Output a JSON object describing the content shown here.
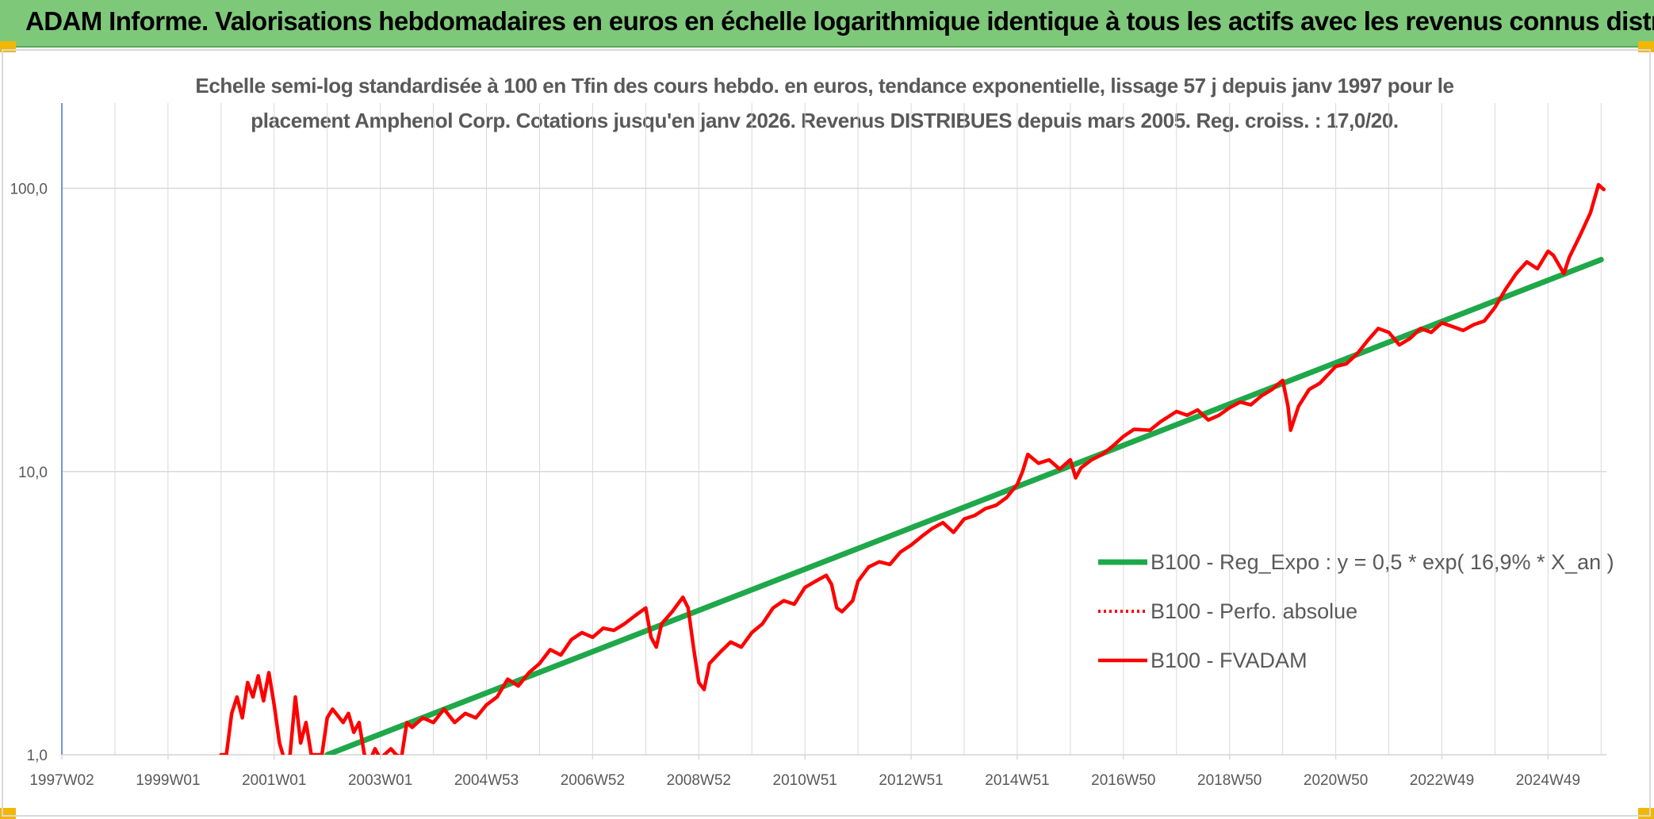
{
  "banner": {
    "title": "ADAM Informe. Valorisations hebdomadaires en euros en échelle logarithmique identique à tous les actifs avec les revenus connus distribués"
  },
  "colors": {
    "banner_bg": "#7ec87a",
    "corner": "#f2b705",
    "trend": "#1fa84a",
    "fvadam": "#ff0000",
    "perfo": "#ff0000",
    "grid": "#d9d9d9",
    "axis": "#4472c4"
  },
  "chart_data": {
    "type": "line",
    "title_line1": "Echelle semi-log standardisée à 100 en Tfin des cours hebdo. en euros, tendance exponentielle, lissage 57 j depuis janv 1997 pour le",
    "title_line2": "placement Amphenol Corp. Cotations jusqu'en janv 2026. Revenus DISTRIBUES depuis mars 2005. Reg. croiss. : 17,0/20.",
    "y_scale": "log",
    "ylim": [
      1,
      200
    ],
    "y_ticks": [
      {
        "value": 1,
        "label": "1,0"
      },
      {
        "value": 10,
        "label": "10,0"
      },
      {
        "value": 100,
        "label": "100,0"
      }
    ],
    "xlim": [
      1997.0,
      2026.1
    ],
    "x_ticks": [
      {
        "value": 1997.0,
        "label": "1997W02"
      },
      {
        "value": 1999.0,
        "label": "1999W01"
      },
      {
        "value": 2001.0,
        "label": "2001W01"
      },
      {
        "value": 2003.0,
        "label": "2003W01"
      },
      {
        "value": 2005.0,
        "label": "2004W53"
      },
      {
        "value": 2007.0,
        "label": "2006W52"
      },
      {
        "value": 2009.0,
        "label": "2008W52"
      },
      {
        "value": 2011.0,
        "label": "2010W51"
      },
      {
        "value": 2013.0,
        "label": "2012W51"
      },
      {
        "value": 2015.0,
        "label": "2014W51"
      },
      {
        "value": 2017.0,
        "label": "2016W50"
      },
      {
        "value": 2019.0,
        "label": "2018W50"
      },
      {
        "value": 2021.0,
        "label": "2020W50"
      },
      {
        "value": 2023.0,
        "label": "2022W49"
      },
      {
        "value": 2025.0,
        "label": "2024W49"
      }
    ],
    "grid": true,
    "legend_position": "right",
    "series": [
      {
        "name": "B100 - Reg_Expo : y = 0,5 * exp( 16,9% *  X_an )",
        "style": "solid-thick",
        "points": [
          [
            2002.0,
            1.0
          ],
          [
            2026.0,
            56.0
          ]
        ]
      },
      {
        "name": "B100 - Perfo. absolue",
        "style": "dotted",
        "points": []
      },
      {
        "name": "B100 - FVADAM",
        "style": "solid",
        "points": [
          [
            2000.0,
            1.0
          ],
          [
            2000.1,
            1.0
          ],
          [
            2000.2,
            1.4
          ],
          [
            2000.3,
            1.6
          ],
          [
            2000.4,
            1.35
          ],
          [
            2000.5,
            1.8
          ],
          [
            2000.6,
            1.6
          ],
          [
            2000.7,
            1.9
          ],
          [
            2000.8,
            1.55
          ],
          [
            2000.9,
            1.95
          ],
          [
            2001.0,
            1.5
          ],
          [
            2001.1,
            1.1
          ],
          [
            2001.2,
            0.95
          ],
          [
            2001.3,
            1.0
          ],
          [
            2001.4,
            1.6
          ],
          [
            2001.5,
            1.1
          ],
          [
            2001.6,
            1.3
          ],
          [
            2001.7,
            1.0
          ],
          [
            2001.8,
            1.0
          ],
          [
            2001.9,
            1.0
          ],
          [
            2002.0,
            1.35
          ],
          [
            2002.1,
            1.45
          ],
          [
            2002.3,
            1.3
          ],
          [
            2002.4,
            1.4
          ],
          [
            2002.5,
            1.2
          ],
          [
            2002.6,
            1.3
          ],
          [
            2002.7,
            1.0
          ],
          [
            2002.8,
            0.95
          ],
          [
            2002.9,
            1.05
          ],
          [
            2003.0,
            0.97
          ],
          [
            2003.2,
            1.05
          ],
          [
            2003.3,
            1.0
          ],
          [
            2003.4,
            0.98
          ],
          [
            2003.5,
            1.3
          ],
          [
            2003.6,
            1.25
          ],
          [
            2003.8,
            1.35
          ],
          [
            2004.0,
            1.3
          ],
          [
            2004.2,
            1.45
          ],
          [
            2004.4,
            1.3
          ],
          [
            2004.6,
            1.4
          ],
          [
            2004.8,
            1.35
          ],
          [
            2005.0,
            1.5
          ],
          [
            2005.2,
            1.6
          ],
          [
            2005.4,
            1.85
          ],
          [
            2005.6,
            1.75
          ],
          [
            2005.8,
            1.95
          ],
          [
            2006.0,
            2.1
          ],
          [
            2006.2,
            2.35
          ],
          [
            2006.4,
            2.25
          ],
          [
            2006.6,
            2.55
          ],
          [
            2006.8,
            2.7
          ],
          [
            2007.0,
            2.6
          ],
          [
            2007.2,
            2.8
          ],
          [
            2007.4,
            2.75
          ],
          [
            2007.6,
            2.9
          ],
          [
            2007.8,
            3.1
          ],
          [
            2008.0,
            3.3
          ],
          [
            2008.1,
            2.6
          ],
          [
            2008.2,
            2.4
          ],
          [
            2008.3,
            2.9
          ],
          [
            2008.5,
            3.2
          ],
          [
            2008.7,
            3.6
          ],
          [
            2008.8,
            3.3
          ],
          [
            2008.9,
            2.4
          ],
          [
            2009.0,
            1.8
          ],
          [
            2009.1,
            1.7
          ],
          [
            2009.2,
            2.1
          ],
          [
            2009.4,
            2.3
          ],
          [
            2009.6,
            2.5
          ],
          [
            2009.8,
            2.4
          ],
          [
            2010.0,
            2.7
          ],
          [
            2010.2,
            2.9
          ],
          [
            2010.4,
            3.3
          ],
          [
            2010.6,
            3.5
          ],
          [
            2010.8,
            3.4
          ],
          [
            2011.0,
            3.9
          ],
          [
            2011.2,
            4.1
          ],
          [
            2011.4,
            4.3
          ],
          [
            2011.5,
            4.0
          ],
          [
            2011.6,
            3.3
          ],
          [
            2011.7,
            3.2
          ],
          [
            2011.9,
            3.5
          ],
          [
            2012.0,
            4.1
          ],
          [
            2012.2,
            4.6
          ],
          [
            2012.4,
            4.8
          ],
          [
            2012.6,
            4.7
          ],
          [
            2012.8,
            5.2
          ],
          [
            2013.0,
            5.5
          ],
          [
            2013.2,
            5.9
          ],
          [
            2013.4,
            6.3
          ],
          [
            2013.6,
            6.6
          ],
          [
            2013.8,
            6.1
          ],
          [
            2014.0,
            6.8
          ],
          [
            2014.2,
            7.0
          ],
          [
            2014.4,
            7.4
          ],
          [
            2014.6,
            7.6
          ],
          [
            2014.8,
            8.1
          ],
          [
            2015.0,
            9.0
          ],
          [
            2015.1,
            10.0
          ],
          [
            2015.2,
            11.5
          ],
          [
            2015.4,
            10.7
          ],
          [
            2015.6,
            11.0
          ],
          [
            2015.8,
            10.2
          ],
          [
            2016.0,
            11.0
          ],
          [
            2016.1,
            9.5
          ],
          [
            2016.2,
            10.3
          ],
          [
            2016.4,
            11.0
          ],
          [
            2016.6,
            11.5
          ],
          [
            2016.8,
            12.3
          ],
          [
            2017.0,
            13.3
          ],
          [
            2017.2,
            14.1
          ],
          [
            2017.5,
            14.0
          ],
          [
            2017.7,
            15.0
          ],
          [
            2018.0,
            16.3
          ],
          [
            2018.2,
            15.8
          ],
          [
            2018.4,
            16.5
          ],
          [
            2018.6,
            15.2
          ],
          [
            2018.8,
            15.8
          ],
          [
            2019.0,
            16.8
          ],
          [
            2019.2,
            17.6
          ],
          [
            2019.4,
            17.2
          ],
          [
            2019.6,
            18.5
          ],
          [
            2019.8,
            19.5
          ],
          [
            2020.0,
            21.0
          ],
          [
            2020.1,
            17.0
          ],
          [
            2020.15,
            14.0
          ],
          [
            2020.3,
            17.0
          ],
          [
            2020.5,
            19.5
          ],
          [
            2020.7,
            20.5
          ],
          [
            2021.0,
            23.5
          ],
          [
            2021.2,
            24.0
          ],
          [
            2021.4,
            26.0
          ],
          [
            2021.6,
            29.0
          ],
          [
            2021.8,
            32.0
          ],
          [
            2022.0,
            31.0
          ],
          [
            2022.2,
            28.0
          ],
          [
            2022.4,
            29.5
          ],
          [
            2022.6,
            32.0
          ],
          [
            2022.8,
            31.0
          ],
          [
            2023.0,
            33.5
          ],
          [
            2023.2,
            32.5
          ],
          [
            2023.4,
            31.5
          ],
          [
            2023.6,
            33.0
          ],
          [
            2023.8,
            34.0
          ],
          [
            2024.0,
            38.0
          ],
          [
            2024.2,
            44.0
          ],
          [
            2024.4,
            50.0
          ],
          [
            2024.6,
            55.0
          ],
          [
            2024.8,
            52.0
          ],
          [
            2025.0,
            60.0
          ],
          [
            2025.1,
            58.0
          ],
          [
            2025.3,
            50.0
          ],
          [
            2025.4,
            57.0
          ],
          [
            2025.6,
            68.0
          ],
          [
            2025.8,
            82.0
          ],
          [
            2025.95,
            103.0
          ],
          [
            2026.05,
            99.0
          ]
        ]
      }
    ]
  }
}
